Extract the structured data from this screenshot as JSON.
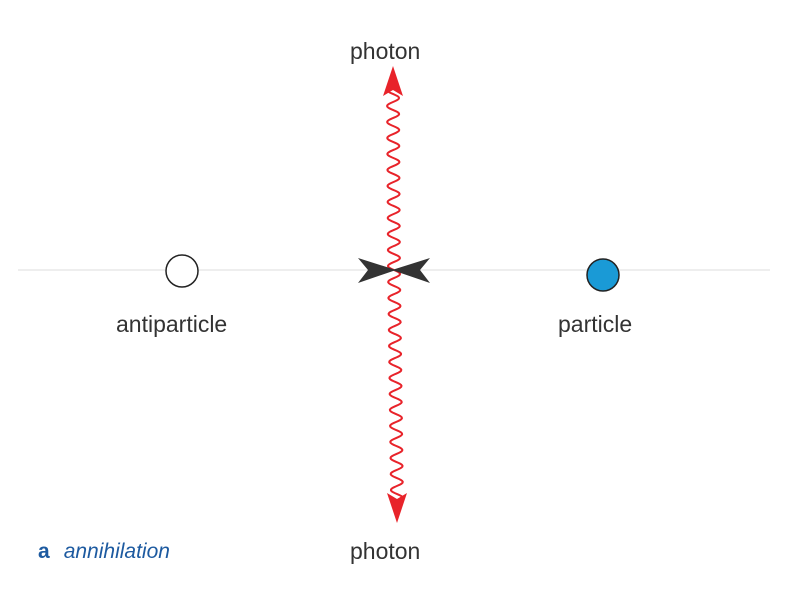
{
  "labels": {
    "photon_top": "photon",
    "photon_bottom": "photon",
    "antiparticle": "antiparticle",
    "particle": "particle"
  },
  "caption": {
    "letter": "a",
    "text": "annihilation"
  },
  "colors": {
    "photon": "#e8232a",
    "particle_fill": "#1a9ad6",
    "antiparticle_fill": "#ffffff",
    "outline": "#222222",
    "axis_line": "#dddddd",
    "collision_arrows": "#333333",
    "caption": "#1d5aa0"
  }
}
